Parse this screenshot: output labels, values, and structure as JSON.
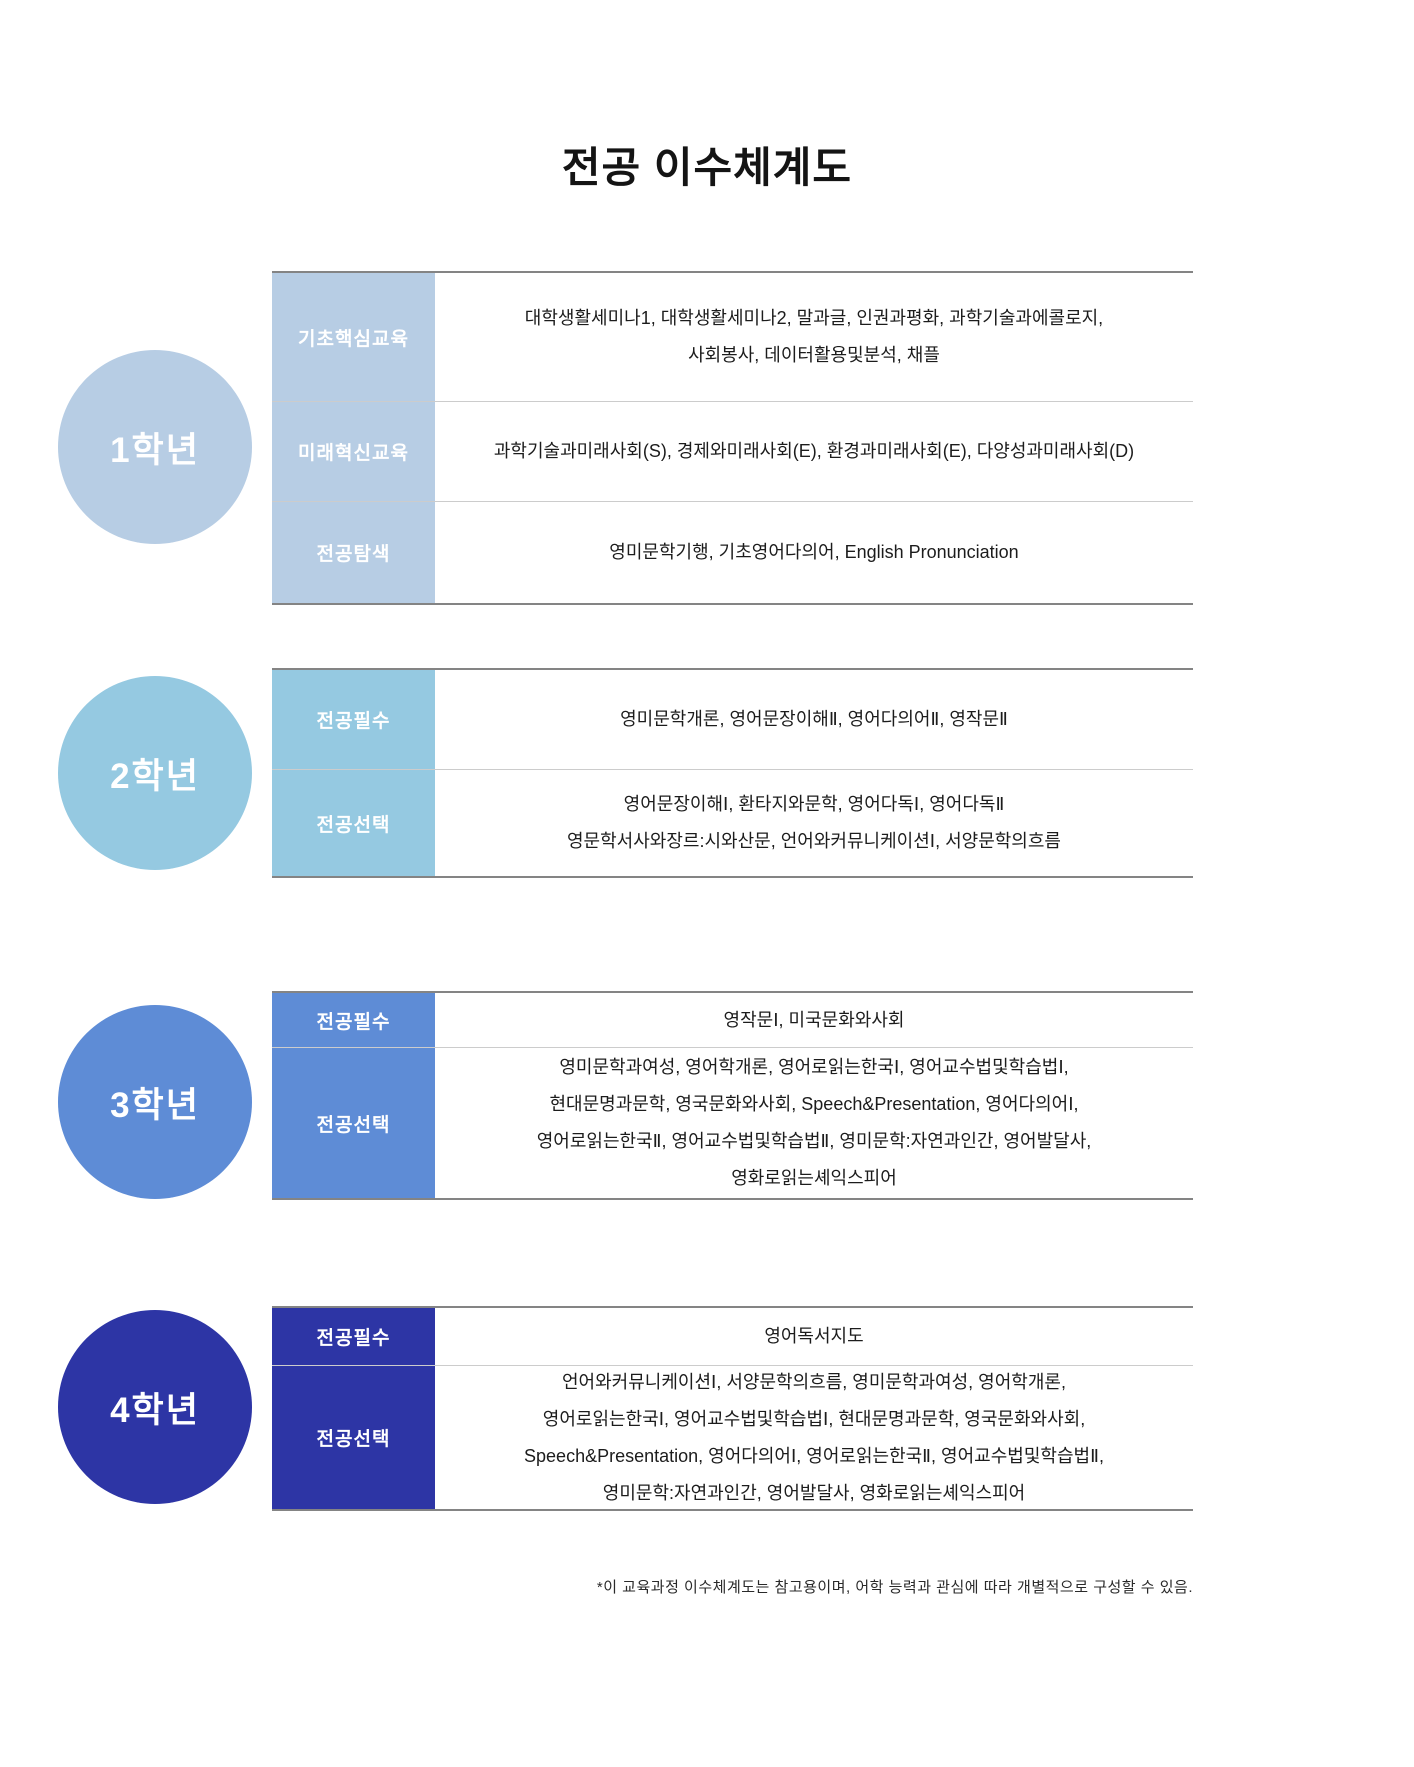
{
  "title": "전공 이수체계도",
  "footnote": "*이 교육과정 이수체계도는 참고용이며, 어학 능력과 관심에 따라 개별적으로 구성할 수 있음.",
  "palette": {
    "year1": "#b7cde4",
    "year2": "#95c9e1",
    "year3": "#5e8cd6",
    "year4": "#2d35a5",
    "border_dark": "#848484",
    "row_divider": "#cccccc",
    "body_text": "#1c1c1c"
  },
  "sections": [
    {
      "year": "1학년",
      "rows": [
        {
          "category": "기초핵심교육",
          "courses": "대학생활세미나1, 대학생활세미나2, 말과글, 인권과평화, 과학기술과에콜로지,\n사회봉사, 데이터활용및분석, 채플"
        },
        {
          "category": "미래혁신교육",
          "courses": "과학기술과미래사회(S), 경제와미래사회(E), 환경과미래사회(E), 다양성과미래사회(D)"
        },
        {
          "category": "전공탐색",
          "courses": "영미문학기행, 기초영어다의어, English Pronunciation"
        }
      ]
    },
    {
      "year": "2학년",
      "rows": [
        {
          "category": "전공필수",
          "courses": "영미문학개론, 영어문장이해Ⅱ, 영어다의어Ⅱ, 영작문Ⅱ"
        },
        {
          "category": "전공선택",
          "courses": "영어문장이해Ⅰ, 환타지와문학, 영어다독Ⅰ, 영어다독Ⅱ\n영문학서사와장르:시와산문, 언어와커뮤니케이션Ⅰ, 서양문학의흐름"
        }
      ]
    },
    {
      "year": "3학년",
      "rows": [
        {
          "category": "전공필수",
          "courses": "영작문Ⅰ, 미국문화와사회"
        },
        {
          "category": "전공선택",
          "courses": "영미문학과여성, 영어학개론, 영어로읽는한국Ⅰ, 영어교수법및학습법Ⅰ,\n현대문명과문학, 영국문화와사회, Speech&Presentation, 영어다의어Ⅰ,\n영어로읽는한국Ⅱ, 영어교수법및학습법Ⅱ, 영미문학:자연과인간, 영어발달사,\n영화로읽는셰익스피어"
        }
      ]
    },
    {
      "year": "4학년",
      "rows": [
        {
          "category": "전공필수",
          "courses": "영어독서지도"
        },
        {
          "category": "전공선택",
          "courses": "언어와커뮤니케이션Ⅰ, 서양문학의흐름, 영미문학과여성, 영어학개론,\n영어로읽는한국Ⅰ, 영어교수법및학습법Ⅰ, 현대문명과문학, 영국문화와사회,\nSpeech&Presentation, 영어다의어Ⅰ, 영어로읽는한국Ⅱ, 영어교수법및학습법Ⅱ,\n영미문학:자연과인간, 영어발달사, 영화로읽는셰익스피어"
        }
      ]
    }
  ]
}
